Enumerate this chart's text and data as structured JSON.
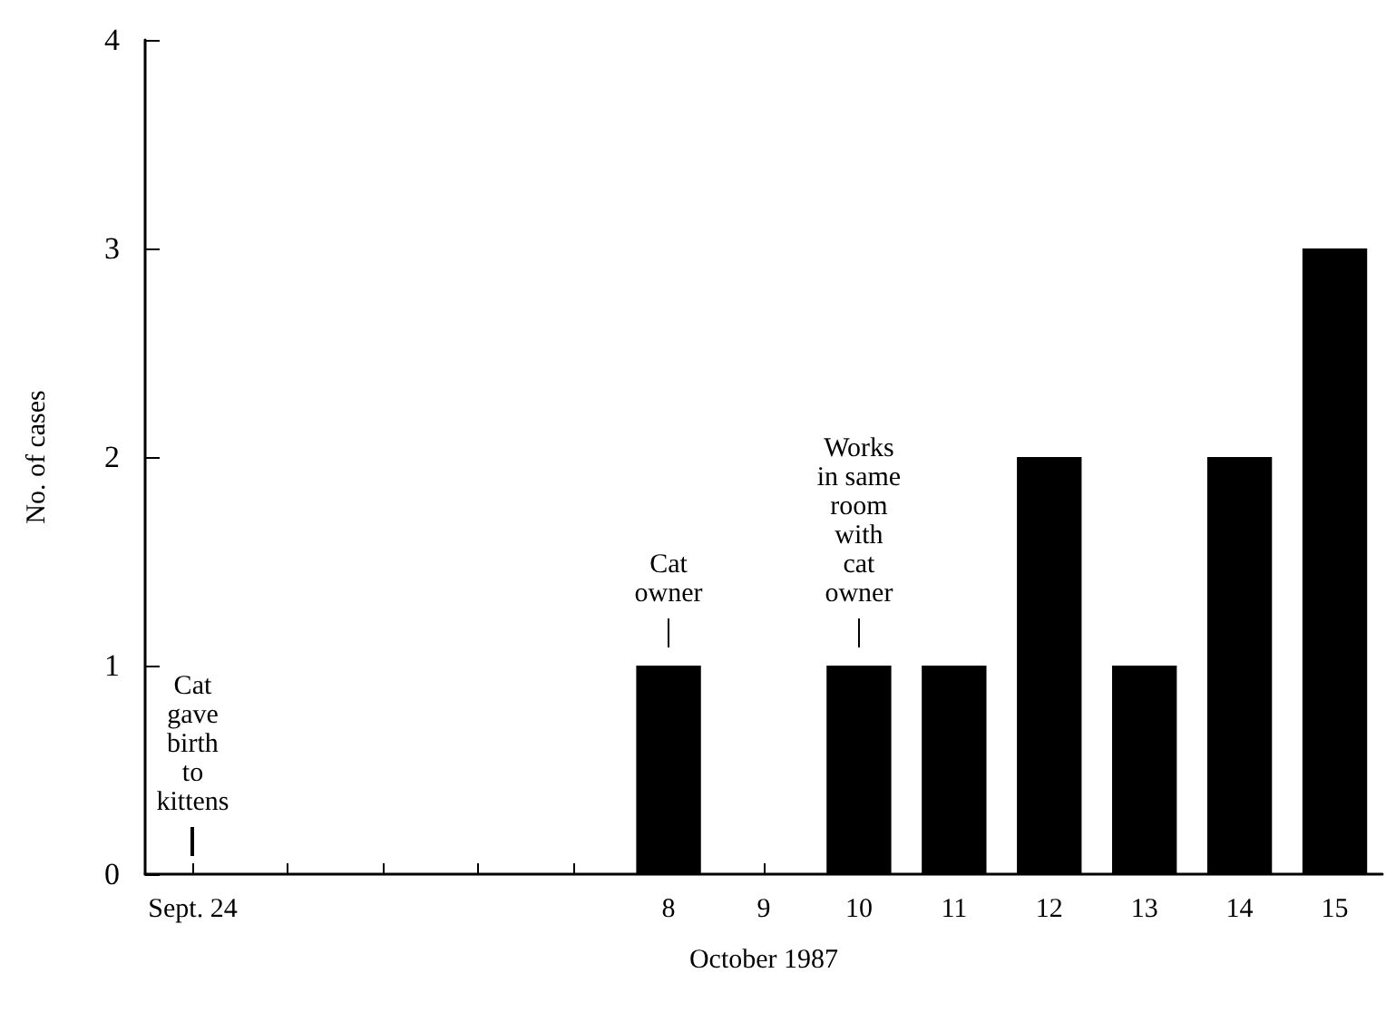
{
  "chart_data": {
    "type": "bar",
    "categories": [
      "Sept. 24",
      null,
      null,
      null,
      null,
      "8",
      "9",
      "10",
      "11",
      "12",
      "13",
      "14",
      "15"
    ],
    "values": [
      0,
      0,
      0,
      0,
      0,
      1,
      0,
      1,
      1,
      2,
      1,
      2,
      3
    ],
    "color": "#000000",
    "xlabel": "October 1987",
    "ylabel": "No. of cases",
    "ylim": [
      0,
      4
    ],
    "yticks": [
      0,
      1,
      2,
      3,
      4
    ],
    "annotations": [
      {
        "text": "Cat\ngave\nbirth\nto\nkittens",
        "x": "Sept. 24",
        "y": 0
      },
      {
        "text": "Cat\nowner",
        "x": "8",
        "y": 1
      },
      {
        "text": "Works\nin same\nroom\nwith\ncat\nowner",
        "x": "10",
        "y": 1
      }
    ]
  }
}
